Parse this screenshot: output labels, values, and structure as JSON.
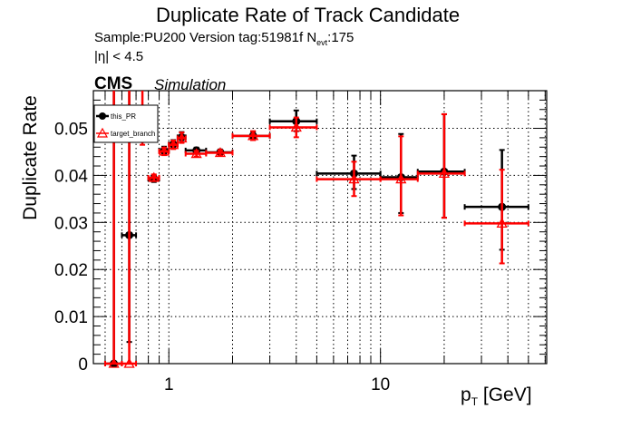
{
  "chart_data": {
    "type": "scatter",
    "title": "Duplicate Rate of Track Candidate",
    "subtitle": "Sample:PU200   Version tag:51981f  N",
    "subtitle_sub": "evt",
    "subtitle_end": ":175",
    "subtitle2": "|η| < 4.5",
    "label_cms": "CMS",
    "label_sim": "Simulation",
    "xlabel": "p",
    "xlabel_sub": "T",
    "xlabel_unit": " [GeV]",
    "ylabel": "Duplicate Rate",
    "xscale": "log",
    "xlim": [
      0.44,
      61
    ],
    "ylim": [
      0,
      0.058
    ],
    "grid": true,
    "legend_position": "top-left",
    "x_tick_labels": [
      "1",
      "10"
    ],
    "y_tick_labels": [
      "0",
      "0.01",
      "0.02",
      "0.03",
      "0.04",
      "0.05"
    ],
    "series": [
      {
        "name": "this_PR",
        "color": "#000000",
        "marker": "filled-circle",
        "points": [
          {
            "x": 0.55,
            "xlo": 0.5,
            "xhi": 0.6,
            "y": 0.0,
            "ylo": 0.0,
            "yhi": 0.08
          },
          {
            "x": 0.65,
            "xlo": 0.6,
            "xhi": 0.7,
            "y": 0.0273,
            "ylo": 0.0046,
            "yhi": 0.08
          },
          {
            "x": 0.85,
            "xlo": 0.8,
            "xhi": 0.9,
            "y": 0.0393,
            "ylo": 0.0386,
            "yhi": 0.04
          },
          {
            "x": 0.95,
            "xlo": 0.9,
            "xhi": 1.0,
            "y": 0.0453,
            "ylo": 0.0445,
            "yhi": 0.0461
          },
          {
            "x": 1.05,
            "xlo": 1.0,
            "xhi": 1.1,
            "y": 0.0466,
            "ylo": 0.0457,
            "yhi": 0.0475
          },
          {
            "x": 1.15,
            "xlo": 1.1,
            "xhi": 1.2,
            "y": 0.0481,
            "ylo": 0.0471,
            "yhi": 0.0492
          },
          {
            "x": 1.35,
            "xlo": 1.2,
            "xhi": 1.5,
            "y": 0.0453,
            "ylo": 0.0447,
            "yhi": 0.0459
          },
          {
            "x": 1.75,
            "xlo": 1.5,
            "xhi": 2.0,
            "y": 0.0449,
            "ylo": 0.0443,
            "yhi": 0.0455
          },
          {
            "x": 2.5,
            "xlo": 2.0,
            "xhi": 3.0,
            "y": 0.0484,
            "ylo": 0.0475,
            "yhi": 0.0493
          },
          {
            "x": 4.0,
            "xlo": 3.0,
            "xhi": 5.0,
            "y": 0.0515,
            "ylo": 0.0494,
            "yhi": 0.0538
          },
          {
            "x": 7.5,
            "xlo": 5.0,
            "xhi": 10.0,
            "y": 0.0404,
            "ylo": 0.0371,
            "yhi": 0.0442
          },
          {
            "x": 12.5,
            "xlo": 10.0,
            "xhi": 15.0,
            "y": 0.0396,
            "ylo": 0.032,
            "yhi": 0.0488
          },
          {
            "x": 20.0,
            "xlo": 15.0,
            "xhi": 25.0,
            "y": 0.0408,
            "ylo": 0.031,
            "yhi": 0.053
          },
          {
            "x": 37.5,
            "xlo": 25.0,
            "xhi": 50.0,
            "y": 0.0333,
            "ylo": 0.0242,
            "yhi": 0.0454
          }
        ]
      },
      {
        "name": "target_branch",
        "color": "#ff0000",
        "marker": "open-triangle",
        "points": [
          {
            "x": 0.55,
            "xlo": 0.5,
            "xhi": 0.6,
            "y": 0.0,
            "ylo": 0.0,
            "yhi": 0.08
          },
          {
            "x": 0.65,
            "xlo": 0.6,
            "xhi": 0.7,
            "y": 0.0,
            "ylo": 0.0,
            "yhi": 0.08
          },
          {
            "x": 0.75,
            "xlo": 0.7,
            "xhi": 0.8,
            "y": 0.052,
            "ylo": 0.0465,
            "yhi": 0.058
          },
          {
            "x": 0.85,
            "xlo": 0.8,
            "xhi": 0.9,
            "y": 0.0395,
            "ylo": 0.0388,
            "yhi": 0.0402
          },
          {
            "x": 0.95,
            "xlo": 0.9,
            "xhi": 1.0,
            "y": 0.0451,
            "ylo": 0.0443,
            "yhi": 0.0459
          },
          {
            "x": 1.05,
            "xlo": 1.0,
            "xhi": 1.1,
            "y": 0.0465,
            "ylo": 0.0456,
            "yhi": 0.0474
          },
          {
            "x": 1.15,
            "xlo": 1.1,
            "xhi": 1.2,
            "y": 0.0479,
            "ylo": 0.0469,
            "yhi": 0.0491
          },
          {
            "x": 1.35,
            "xlo": 1.2,
            "xhi": 1.5,
            "y": 0.0446,
            "ylo": 0.044,
            "yhi": 0.0452
          },
          {
            "x": 1.75,
            "xlo": 1.5,
            "xhi": 2.0,
            "y": 0.0448,
            "ylo": 0.0442,
            "yhi": 0.0454
          },
          {
            "x": 2.5,
            "xlo": 2.0,
            "xhi": 3.0,
            "y": 0.0484,
            "ylo": 0.0475,
            "yhi": 0.0494
          },
          {
            "x": 4.0,
            "xlo": 3.0,
            "xhi": 5.0,
            "y": 0.0502,
            "ylo": 0.0481,
            "yhi": 0.0523
          },
          {
            "x": 7.5,
            "xlo": 5.0,
            "xhi": 10.0,
            "y": 0.0392,
            "ylo": 0.0356,
            "yhi": 0.0429
          },
          {
            "x": 12.5,
            "xlo": 10.0,
            "xhi": 15.0,
            "y": 0.0392,
            "ylo": 0.0315,
            "yhi": 0.0483
          },
          {
            "x": 20.0,
            "xlo": 15.0,
            "xhi": 25.0,
            "y": 0.0404,
            "ylo": 0.031,
            "yhi": 0.053
          },
          {
            "x": 37.5,
            "xlo": 25.0,
            "xhi": 50.0,
            "y": 0.0298,
            "ylo": 0.0213,
            "yhi": 0.0412
          }
        ]
      }
    ]
  }
}
